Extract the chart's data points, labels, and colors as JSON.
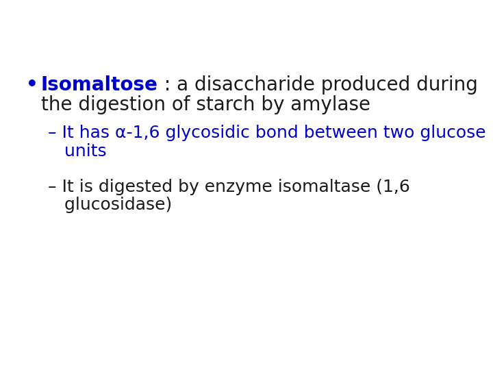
{
  "background_color": "#ffffff",
  "blue_color": "#0000cc",
  "dark_color": "#1a1a1a",
  "bullet_symbol": "•",
  "bullet_keyword": "Isomaltose",
  "bullet_rest_line1": " : a disaccharide produced during",
  "bullet_rest_line2": "the digestion of starch by amylase",
  "sub1_line1": "– It has α-1,6 glycosidic bond between two glucose",
  "sub1_line2": "   units",
  "sub1_color": "#0000cc",
  "sub2_line1": "– It is digested by enzyme isomaltase (1,6",
  "sub2_line2": "   glucosidase)",
  "sub2_color": "#1a1a1a",
  "fontsize_main": 20,
  "fontsize_sub": 18,
  "figsize": [
    7.2,
    5.4
  ],
  "dpi": 100
}
